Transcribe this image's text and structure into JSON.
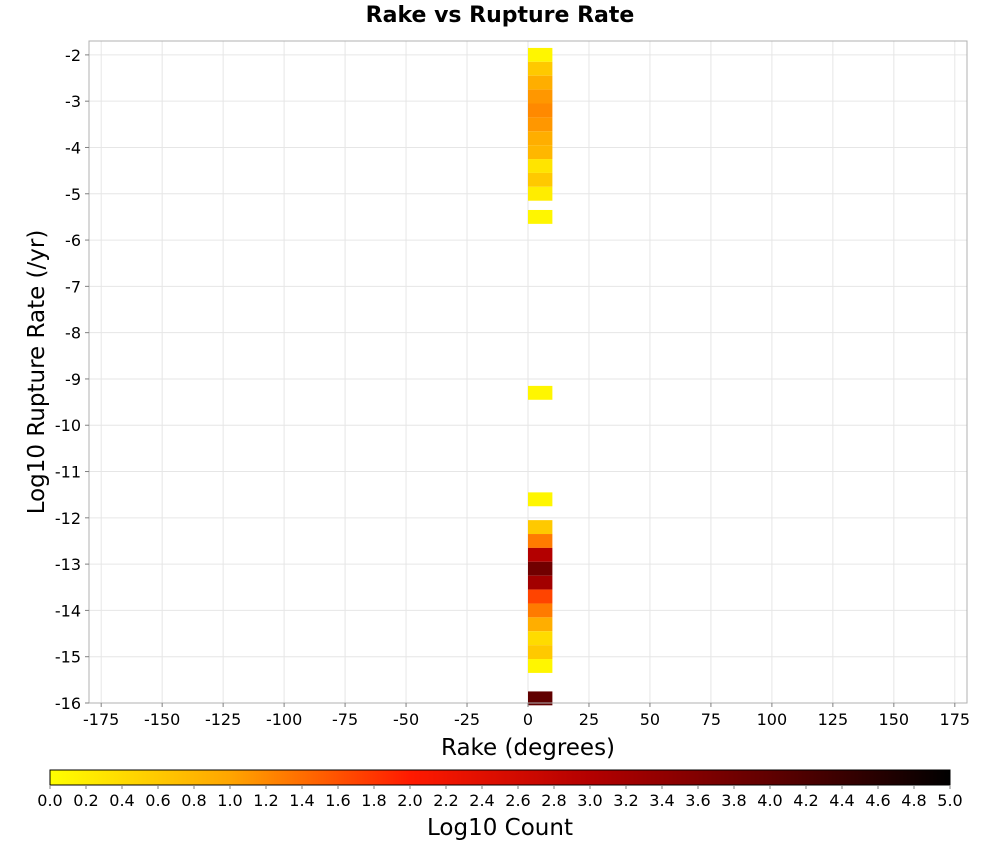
{
  "chart_data": {
    "type": "heatmap",
    "title": "Rake vs Rupture Rate",
    "xlabel": "Rake (degrees)",
    "ylabel": "Log10 Rupture Rate (/yr)",
    "xlim": [
      -180,
      180
    ],
    "ylim": [
      -16,
      -1.7
    ],
    "x_ticks": [
      -175,
      -150,
      -125,
      -100,
      -75,
      -50,
      -25,
      0,
      25,
      50,
      75,
      100,
      125,
      150,
      175
    ],
    "y_ticks": [
      -2,
      -3,
      -4,
      -5,
      -6,
      -7,
      -8,
      -9,
      -10,
      -11,
      -12,
      -13,
      -14,
      -15,
      -16
    ],
    "cell_size": {
      "x": 10,
      "y": 0.3
    },
    "grid": true,
    "colorscale": {
      "label": "Log10 Count",
      "range": [
        0,
        5
      ],
      "ticks": [
        "0.0",
        "0.2",
        "0.4",
        "0.6",
        "0.8",
        "1.0",
        "1.2",
        "1.4",
        "1.6",
        "1.8",
        "2.0",
        "2.2",
        "2.4",
        "2.6",
        "2.8",
        "3.0",
        "3.2",
        "3.4",
        "3.6",
        "3.8",
        "4.0",
        "4.2",
        "4.4",
        "4.6",
        "4.8",
        "5.0"
      ],
      "stops": [
        {
          "value": 0.0,
          "color": "#ffff00"
        },
        {
          "value": 1.0,
          "color": "#ffa500"
        },
        {
          "value": 2.0,
          "color": "#ff1a00"
        },
        {
          "value": 3.0,
          "color": "#b30000"
        },
        {
          "value": 4.0,
          "color": "#600000"
        },
        {
          "value": 5.0,
          "color": "#000000"
        }
      ]
    },
    "cells": [
      {
        "x": 5,
        "y": -2.0,
        "value": 0.1
      },
      {
        "x": 5,
        "y": -2.3,
        "value": 0.6
      },
      {
        "x": 5,
        "y": -2.6,
        "value": 0.9
      },
      {
        "x": 5,
        "y": -2.9,
        "value": 1.1
      },
      {
        "x": 5,
        "y": -3.2,
        "value": 1.2
      },
      {
        "x": 5,
        "y": -3.5,
        "value": 1.1
      },
      {
        "x": 5,
        "y": -3.8,
        "value": 0.9
      },
      {
        "x": 5,
        "y": -4.1,
        "value": 0.8
      },
      {
        "x": 5,
        "y": -4.4,
        "value": 0.3
      },
      {
        "x": 5,
        "y": -4.7,
        "value": 0.6
      },
      {
        "x": 5,
        "y": -5.0,
        "value": 0.2
      },
      {
        "x": 5,
        "y": -5.5,
        "value": 0.1
      },
      {
        "x": 5,
        "y": -9.3,
        "value": 0.1
      },
      {
        "x": 5,
        "y": -11.6,
        "value": 0.1
      },
      {
        "x": 5,
        "y": -12.2,
        "value": 0.6
      },
      {
        "x": 5,
        "y": -12.5,
        "value": 1.3
      },
      {
        "x": 5,
        "y": -12.8,
        "value": 3.0
      },
      {
        "x": 5,
        "y": -13.1,
        "value": 3.8
      },
      {
        "x": 5,
        "y": -13.4,
        "value": 3.2
      },
      {
        "x": 5,
        "y": -13.7,
        "value": 1.7
      },
      {
        "x": 5,
        "y": -14.0,
        "value": 1.3
      },
      {
        "x": 5,
        "y": -14.3,
        "value": 0.9
      },
      {
        "x": 5,
        "y": -14.6,
        "value": 0.4
      },
      {
        "x": 5,
        "y": -14.9,
        "value": 0.6
      },
      {
        "x": 5,
        "y": -15.2,
        "value": 0.1
      },
      {
        "x": 5,
        "y": -15.9,
        "value": 4.0
      }
    ]
  }
}
